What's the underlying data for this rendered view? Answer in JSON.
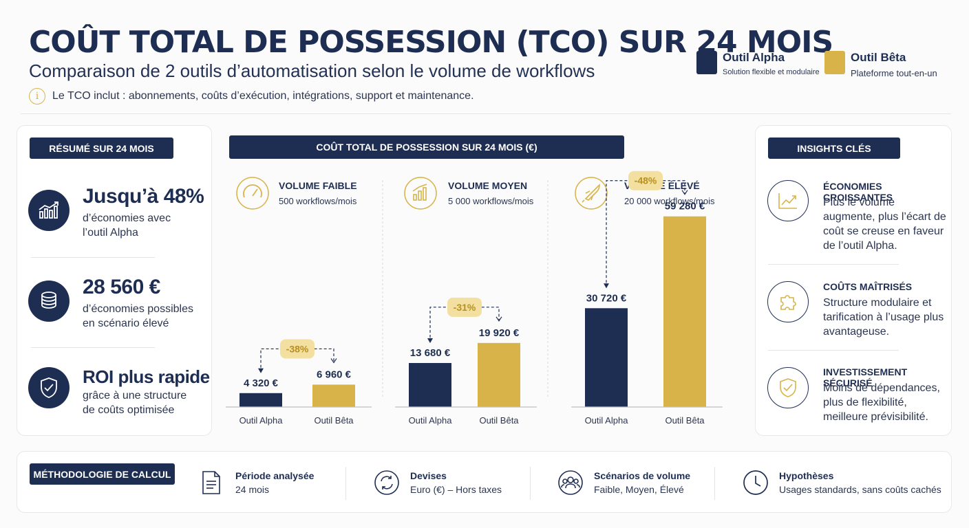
{
  "header": {
    "title": "COÛT TOTAL DE POSSESSION (TCO) SUR 24 MOIS",
    "subtitle": "Comparaison de 2 outils d’automatisation selon le volume de workflows",
    "note": "Le TCO inclut : abonnements, coûts d’exécution, intégrations, support et maintenance.",
    "info_glyph": "i"
  },
  "legend": [
    {
      "name": "Outil Alpha",
      "desc": "Solution flexible et modulaire",
      "color": "#1e2d52"
    },
    {
      "name": "Outil Bêta",
      "desc": "Plateforme tout-en-un",
      "color": "#d8b34a"
    }
  ],
  "summary": {
    "tag": "RÉSUMÉ SUR 24 MOIS",
    "items": [
      {
        "big": "Jusqu’à 48%",
        "text": "d’économies avec l’outil Alpha",
        "icon": "chart-growth-icon"
      },
      {
        "big": "28 560 €",
        "text": "d’économies possibles en scénario élevé",
        "icon": "coins-icon"
      },
      {
        "big": "ROI plus rapide",
        "text": "grâce à une structure de coûts optimisée",
        "icon": "shield-check-icon"
      }
    ]
  },
  "chart_header": "COÛT TOTAL DE POSSESSION SUR 24 MOIS (€)",
  "chart_data": [
    {
      "type": "bar",
      "title": "VOLUME FAIBLE",
      "subtitle": "500 workflows/mois",
      "icon": "gauge-icon",
      "categories": [
        "Outil Alpha",
        "Outil Bêta"
      ],
      "values": [
        4320,
        6960
      ],
      "value_labels": [
        "4 320 €",
        "6 960 €"
      ],
      "delta": "-38%",
      "ylim": [
        0,
        62000
      ]
    },
    {
      "type": "bar",
      "title": "VOLUME MOYEN",
      "subtitle": "5 000 workflows/mois",
      "icon": "bar-chart-icon",
      "categories": [
        "Outil Alpha",
        "Outil Bêta"
      ],
      "values": [
        13680,
        19920
      ],
      "value_labels": [
        "13 680 €",
        "19 920 €"
      ],
      "delta": "-31%",
      "ylim": [
        0,
        62000
      ]
    },
    {
      "type": "bar",
      "title": "VOLUME ÉLEVÉ",
      "subtitle": "20 000 workflows/mois",
      "icon": "rocket-icon",
      "categories": [
        "Outil Alpha",
        "Outil Bêta"
      ],
      "values": [
        30720,
        59280
      ],
      "value_labels": [
        "30 720 €",
        "59 280 €"
      ],
      "delta": "-48%",
      "ylim": [
        0,
        62000
      ]
    }
  ],
  "insights": {
    "tag": "INSIGHTS CLÉS",
    "items": [
      {
        "title": "ÉCONOMIES CROISSANTES",
        "text": "Plus le volume augmente, plus l’écart de coût se creuse en faveur de l’outil Alpha.",
        "icon": "trend-up-icon"
      },
      {
        "title": "COÛTS MAÎTRISÉS",
        "text": "Structure modulaire et tarification à l’usage plus avantageuse.",
        "icon": "puzzle-icon"
      },
      {
        "title": "INVESTISSEMENT SÉCURISÉ",
        "text": "Moins de dépendances, plus de flexibilité, meilleure prévisibilité.",
        "icon": "shield-icon"
      }
    ]
  },
  "methodology": {
    "tag": "MÉTHODOLOGIE DE CALCUL",
    "items": [
      {
        "title": "Période analysée",
        "text": "24 mois",
        "icon": "document-icon"
      },
      {
        "title": "Devises",
        "text": "Euro (€) – Hors taxes",
        "icon": "currency-exchange-icon"
      },
      {
        "title": "Scénarios de volume",
        "text": "Faible, Moyen, Élevé",
        "icon": "users-icon"
      },
      {
        "title": "Hypothèses",
        "text": "Usages standards, sans coûts cachés",
        "icon": "clock-icon"
      }
    ]
  },
  "colors": {
    "navy": "#1e2d52",
    "gold": "#d8b34a",
    "gold_light": "#f3dfa0"
  }
}
